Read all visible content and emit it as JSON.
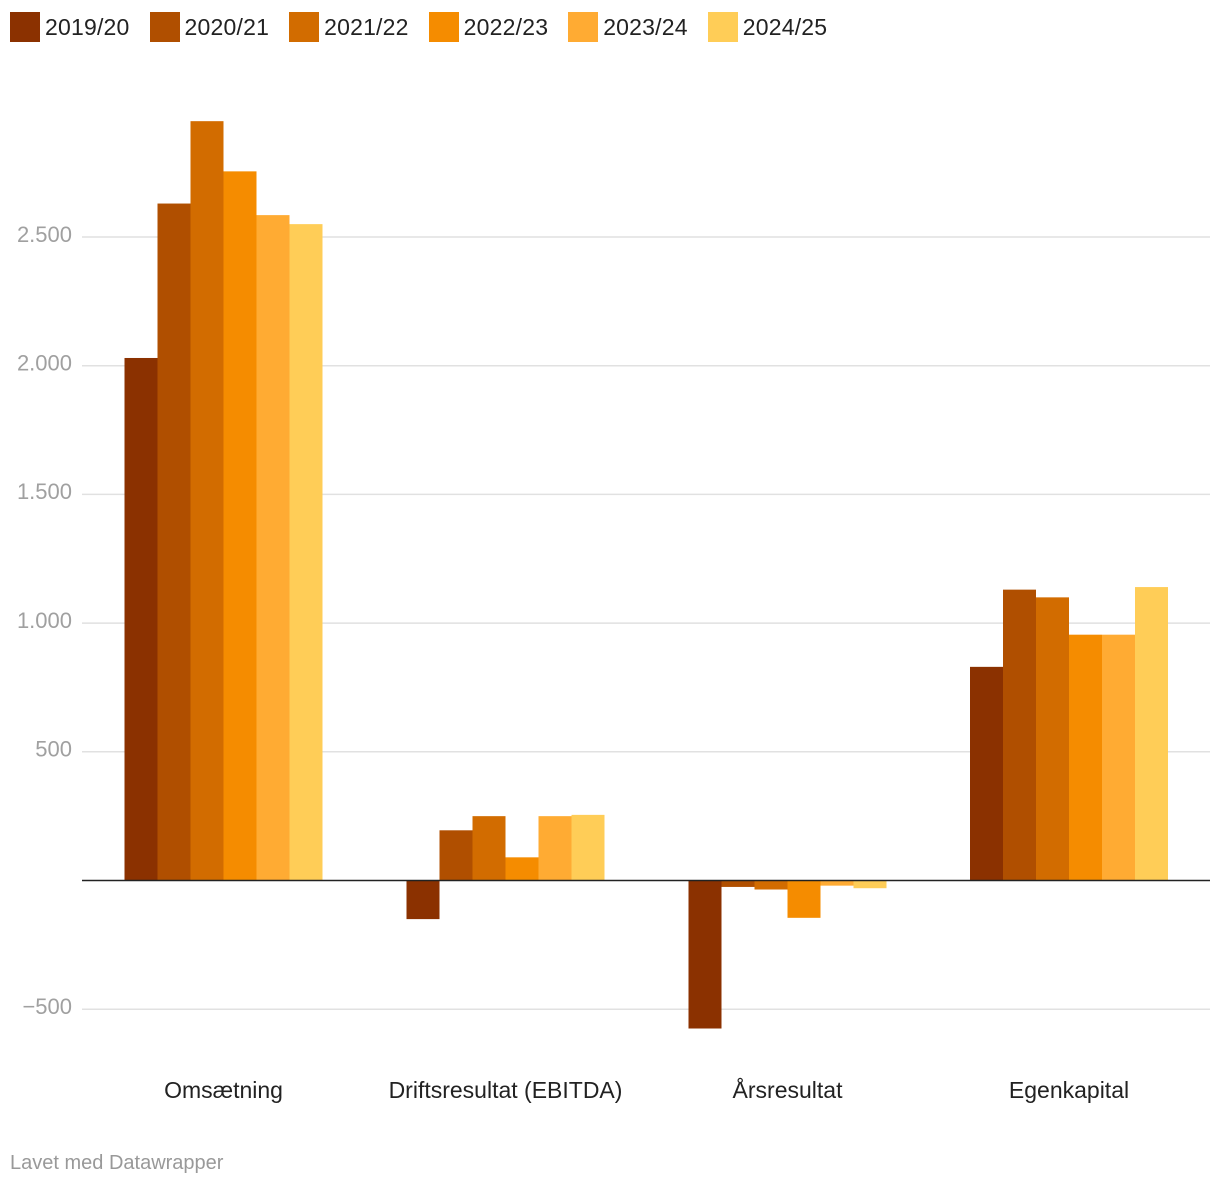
{
  "chart_data": {
    "type": "bar",
    "categories": [
      "Omsætning",
      "Driftsresultat (EBITDA)",
      "Årsresultat",
      "Egenkapital"
    ],
    "series": [
      {
        "name": "2019/20",
        "color": "#8b3100",
        "values": [
          2030,
          -150,
          -575,
          830
        ]
      },
      {
        "name": "2020/21",
        "color": "#b04f00",
        "values": [
          2630,
          195,
          -25,
          1130
        ]
      },
      {
        "name": "2021/22",
        "color": "#d26c00",
        "values": [
          2950,
          250,
          -35,
          1100
        ]
      },
      {
        "name": "2022/23",
        "color": "#f58c00",
        "values": [
          2755,
          90,
          -145,
          955
        ]
      },
      {
        "name": "2023/24",
        "color": "#ffab33",
        "values": [
          2585,
          250,
          -20,
          955
        ]
      },
      {
        "name": "2024/25",
        "color": "#ffcd57",
        "values": [
          2550,
          255,
          -30,
          1140
        ]
      }
    ],
    "y_ticks": [
      -500,
      500,
      1000,
      1500,
      2000,
      2500
    ],
    "y_tick_labels": [
      "−500",
      "500",
      "1.000",
      "1.500",
      "2.000",
      "2.500"
    ],
    "ylim": [
      -700,
      3100
    ],
    "grid": true,
    "legend": "top-left"
  },
  "footer": {
    "credit": "Lavet med Datawrapper"
  }
}
